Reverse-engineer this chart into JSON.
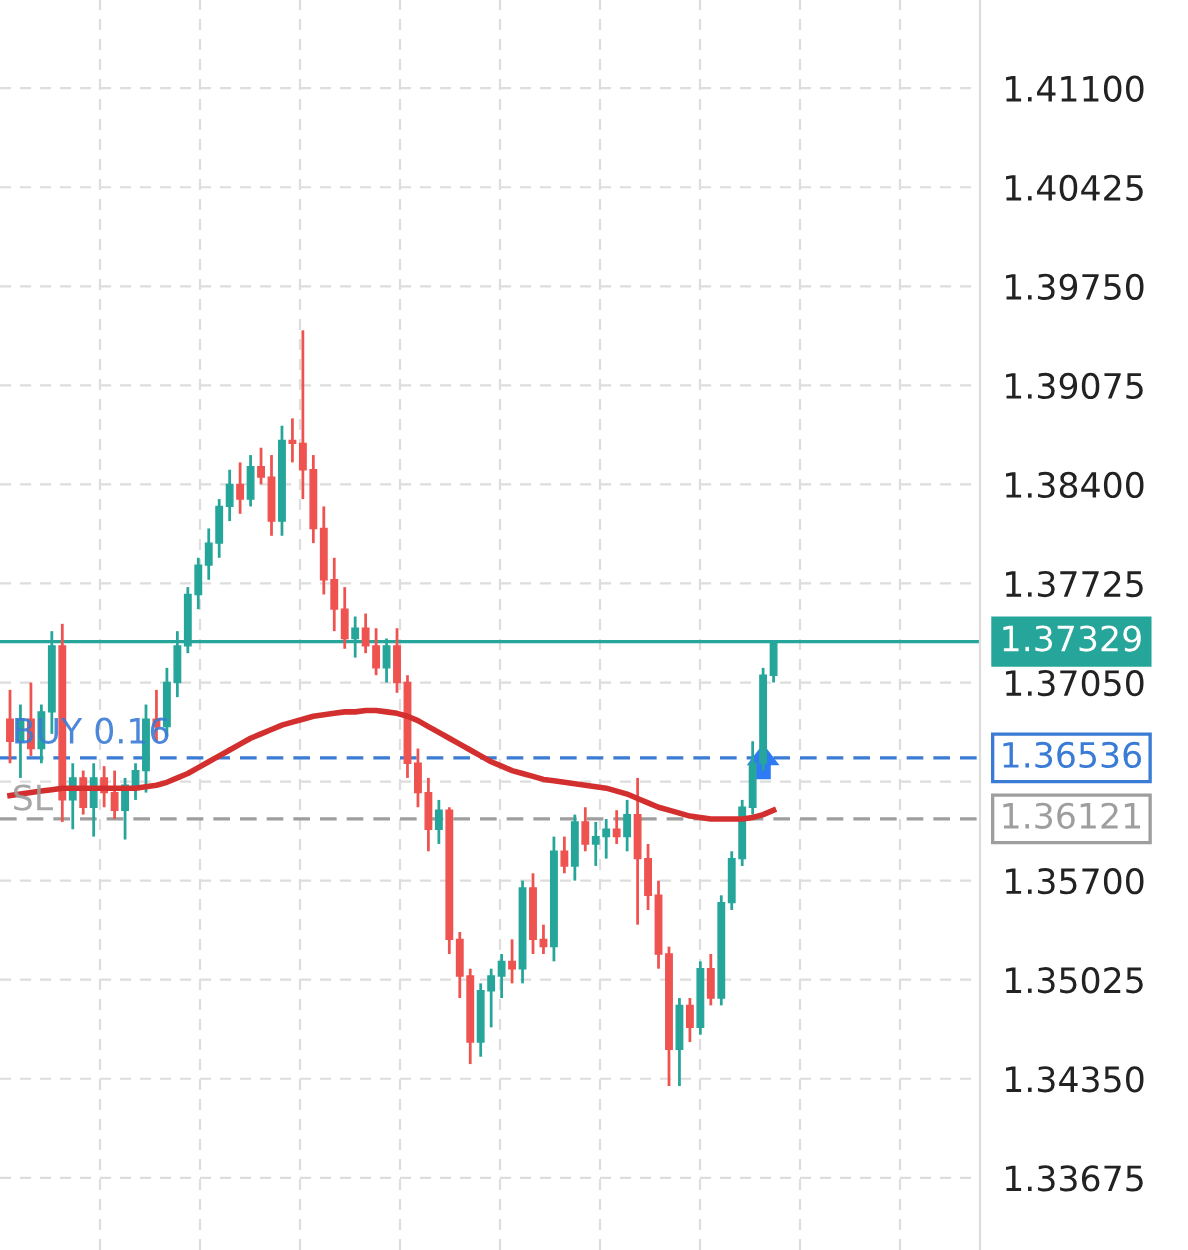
{
  "chart_data": {
    "type": "candlestick",
    "categories": [
      null,
      null,
      null,
      null,
      null,
      null,
      null,
      null,
      null,
      null,
      null,
      null,
      null,
      null,
      null,
      null,
      null,
      null,
      null,
      null,
      null,
      null,
      null,
      null,
      null,
      null,
      null,
      null,
      null,
      null,
      null,
      null,
      null,
      null,
      null,
      null,
      null,
      null,
      null,
      null,
      null,
      null,
      null,
      null,
      null,
      null,
      null,
      null,
      null,
      null,
      null,
      null,
      null,
      null,
      null,
      null,
      null,
      null,
      null,
      null,
      null,
      null,
      null,
      null,
      null,
      null,
      null,
      null,
      null,
      null,
      null,
      null,
      null,
      null
    ],
    "ohlc": [
      [
        1.368,
        1.37,
        1.365,
        1.3665
      ],
      [
        1.3665,
        1.369,
        1.364,
        1.368
      ],
      [
        1.368,
        1.3705,
        1.3655,
        1.366
      ],
      [
        1.366,
        1.369,
        1.365,
        1.3685
      ],
      [
        1.3685,
        1.374,
        1.367,
        1.373
      ],
      [
        1.373,
        1.3745,
        1.361,
        1.3625
      ],
      [
        1.3625,
        1.365,
        1.3605,
        1.364
      ],
      [
        1.364,
        1.3645,
        1.3615,
        1.362
      ],
      [
        1.362,
        1.365,
        1.36,
        1.364
      ],
      [
        1.364,
        1.3648,
        1.362,
        1.363
      ],
      [
        1.363,
        1.3645,
        1.3612,
        1.3618
      ],
      [
        1.3618,
        1.364,
        1.3598,
        1.3635
      ],
      [
        1.3635,
        1.365,
        1.3625,
        1.3645
      ],
      [
        1.3645,
        1.369,
        1.363,
        1.368
      ],
      [
        1.368,
        1.37,
        1.3665,
        1.3675
      ],
      [
        1.3675,
        1.3715,
        1.3668,
        1.3705
      ],
      [
        1.3705,
        1.374,
        1.3695,
        1.373
      ],
      [
        1.373,
        1.377,
        1.3725,
        1.3765
      ],
      [
        1.3765,
        1.379,
        1.3755,
        1.3785
      ],
      [
        1.3785,
        1.381,
        1.3775,
        1.38
      ],
      [
        1.38,
        1.383,
        1.379,
        1.3825
      ],
      [
        1.3825,
        1.385,
        1.3815,
        1.384
      ],
      [
        1.384,
        1.3855,
        1.382,
        1.383
      ],
      [
        1.383,
        1.386,
        1.3825,
        1.3852
      ],
      [
        1.3852,
        1.3865,
        1.384,
        1.3845
      ],
      [
        1.3845,
        1.386,
        1.3805,
        1.3815
      ],
      [
        1.3815,
        1.388,
        1.3805,
        1.387
      ],
      [
        1.387,
        1.3885,
        1.3855,
        1.3868
      ],
      [
        1.3868,
        1.3945,
        1.383,
        1.385
      ],
      [
        1.385,
        1.386,
        1.38,
        1.381
      ],
      [
        1.381,
        1.3825,
        1.3765,
        1.3775
      ],
      [
        1.3775,
        1.379,
        1.374,
        1.3755
      ],
      [
        1.3755,
        1.377,
        1.3728,
        1.3735
      ],
      [
        1.3735,
        1.375,
        1.3722,
        1.3742
      ],
      [
        1.3742,
        1.3752,
        1.3725,
        1.373
      ],
      [
        1.373,
        1.3742,
        1.371,
        1.3715
      ],
      [
        1.3715,
        1.3735,
        1.3705,
        1.373
      ],
      [
        1.373,
        1.3742,
        1.3698,
        1.3705
      ],
      [
        1.3705,
        1.371,
        1.364,
        1.365
      ],
      [
        1.365,
        1.366,
        1.362,
        1.363
      ],
      [
        1.363,
        1.364,
        1.359,
        1.3605
      ],
      [
        1.3605,
        1.3625,
        1.3595,
        1.3618
      ],
      [
        1.3618,
        1.362,
        1.352,
        1.353
      ],
      [
        1.353,
        1.3535,
        1.349,
        1.3505
      ],
      [
        1.3505,
        1.351,
        1.3445,
        1.346
      ],
      [
        1.346,
        1.35,
        1.345,
        1.3495
      ],
      [
        1.3495,
        1.351,
        1.347,
        1.3505
      ],
      [
        1.3505,
        1.352,
        1.349,
        1.3515
      ],
      [
        1.3515,
        1.353,
        1.35,
        1.351
      ],
      [
        1.351,
        1.357,
        1.35,
        1.3565
      ],
      [
        1.3565,
        1.3575,
        1.352,
        1.353
      ],
      [
        1.353,
        1.354,
        1.352,
        1.3525
      ],
      [
        1.3525,
        1.36,
        1.3515,
        1.359
      ],
      [
        1.359,
        1.36,
        1.3575,
        1.358
      ],
      [
        1.358,
        1.3615,
        1.357,
        1.361
      ],
      [
        1.361,
        1.362,
        1.359,
        1.3595
      ],
      [
        1.3595,
        1.361,
        1.358,
        1.36
      ],
      [
        1.36,
        1.3612,
        1.3585,
        1.3605
      ],
      [
        1.3605,
        1.3618,
        1.3595,
        1.36
      ],
      [
        1.36,
        1.3625,
        1.359,
        1.3615
      ],
      [
        1.3615,
        1.364,
        1.354,
        1.3585
      ],
      [
        1.3585,
        1.3595,
        1.355,
        1.356
      ],
      [
        1.356,
        1.357,
        1.351,
        1.352
      ],
      [
        1.352,
        1.3525,
        1.343,
        1.3455
      ],
      [
        1.3455,
        1.349,
        1.343,
        1.3485
      ],
      [
        1.3485,
        1.349,
        1.346,
        1.347
      ],
      [
        1.347,
        1.3515,
        1.3465,
        1.351
      ],
      [
        1.351,
        1.352,
        1.3485,
        1.349
      ],
      [
        1.349,
        1.356,
        1.3485,
        1.3555
      ],
      [
        1.3555,
        1.359,
        1.355,
        1.3585
      ],
      [
        1.3585,
        1.3625,
        1.358,
        1.362
      ],
      [
        1.362,
        1.3665,
        1.3615,
        1.365
      ],
      [
        1.365,
        1.3715,
        1.3645,
        1.371
      ],
      [
        1.371,
        1.3733,
        1.3705,
        1.3733
      ]
    ],
    "colors": [
      "#ef5350",
      "#26a69a",
      "#ef5350",
      "#26a69a",
      "#26a69a",
      "#ef5350",
      "#26a69a",
      "#ef5350",
      "#26a69a",
      "#ef5350",
      "#ef5350",
      "#26a69a",
      "#26a69a",
      "#26a69a",
      "#ef5350",
      "#26a69a",
      "#26a69a",
      "#26a69a",
      "#26a69a",
      "#26a69a",
      "#26a69a",
      "#26a69a",
      "#ef5350",
      "#26a69a",
      "#ef5350",
      "#ef5350",
      "#26a69a",
      "#ef5350",
      "#ef5350",
      "#ef5350",
      "#ef5350",
      "#ef5350",
      "#ef5350",
      "#26a69a",
      "#ef5350",
      "#ef5350",
      "#26a69a",
      "#ef5350",
      "#ef5350",
      "#ef5350",
      "#ef5350",
      "#26a69a",
      "#ef5350",
      "#ef5350",
      "#ef5350",
      "#26a69a",
      "#26a69a",
      "#26a69a",
      "#ef5350",
      "#26a69a",
      "#ef5350",
      "#ef5350",
      "#26a69a",
      "#ef5350",
      "#26a69a",
      "#ef5350",
      "#26a69a",
      "#26a69a",
      "#ef5350",
      "#26a69a",
      "#ef5350",
      "#ef5350",
      "#ef5350",
      "#ef5350",
      "#26a69a",
      "#ef5350",
      "#26a69a",
      "#ef5350",
      "#26a69a",
      "#26a69a",
      "#26a69a",
      "#26a69a",
      "#26a69a",
      "#26a69a"
    ],
    "series": [
      {
        "type": "line",
        "color": "#d32f2f",
        "values": [
          1.3628,
          1.3629,
          1.363,
          1.3631,
          1.3632,
          1.3633,
          1.3633,
          1.3633,
          1.3633,
          1.3633,
          1.3633,
          1.3633,
          1.3633,
          1.3634,
          1.3635,
          1.3637,
          1.364,
          1.3643,
          1.3647,
          1.3651,
          1.3655,
          1.3659,
          1.3663,
          1.3667,
          1.367,
          1.3673,
          1.3676,
          1.3678,
          1.368,
          1.3682,
          1.3683,
          1.3684,
          1.3685,
          1.3685,
          1.3686,
          1.3686,
          1.3685,
          1.3684,
          1.3682,
          1.3679,
          1.3675,
          1.3671,
          1.3667,
          1.3663,
          1.3659,
          1.3655,
          1.3651,
          1.3648,
          1.3645,
          1.3643,
          1.3641,
          1.3639,
          1.3638,
          1.3637,
          1.3636,
          1.3635,
          1.3634,
          1.3633,
          1.3631,
          1.3629,
          1.3626,
          1.3623,
          1.362,
          1.3618,
          1.3616,
          1.3614,
          1.3613,
          1.3612,
          1.3612,
          1.3612,
          1.3612,
          1.3613,
          1.3615,
          1.3618
        ]
      }
    ],
    "ylim": [
      1.33183,
      1.41701
    ],
    "yticks": [
      1.33675,
      {
        "value": 1.3435,
        "label": "1.34350"
      },
      1.35025,
      {
        "value": 1.357,
        "label": "1.35700"
      },
      {
        "value": 1.36375,
        "label": null
      },
      {
        "value": 1.3705,
        "label": "1.37050"
      },
      1.37725,
      {
        "value": 1.384,
        "label": "1.38400"
      },
      1.39075,
      {
        "value": 1.3975,
        "label": "1.39750"
      },
      1.40425,
      {
        "value": 1.411,
        "label": "1.41100"
      }
    ],
    "ref_lines": [
      {
        "axis": "y",
        "value": 1.37329,
        "label": "1.37329",
        "color": "#26a69a",
        "line_style": "solid"
      },
      {
        "axis": "y",
        "value": 1.36536,
        "label": "1.36536",
        "color": "#3a7bd5",
        "line_style": "dashed"
      },
      {
        "axis": "y",
        "value": 1.36121,
        "label": "1.36121",
        "color": "#9e9e9e",
        "line_style": "dashed"
      }
    ],
    "annotations": [
      {
        "text": "BUY 0.16",
        "y": 1.36536
      },
      {
        "text": "SL",
        "y": 1.36121
      }
    ],
    "grid": true,
    "tick_labels": "y"
  }
}
